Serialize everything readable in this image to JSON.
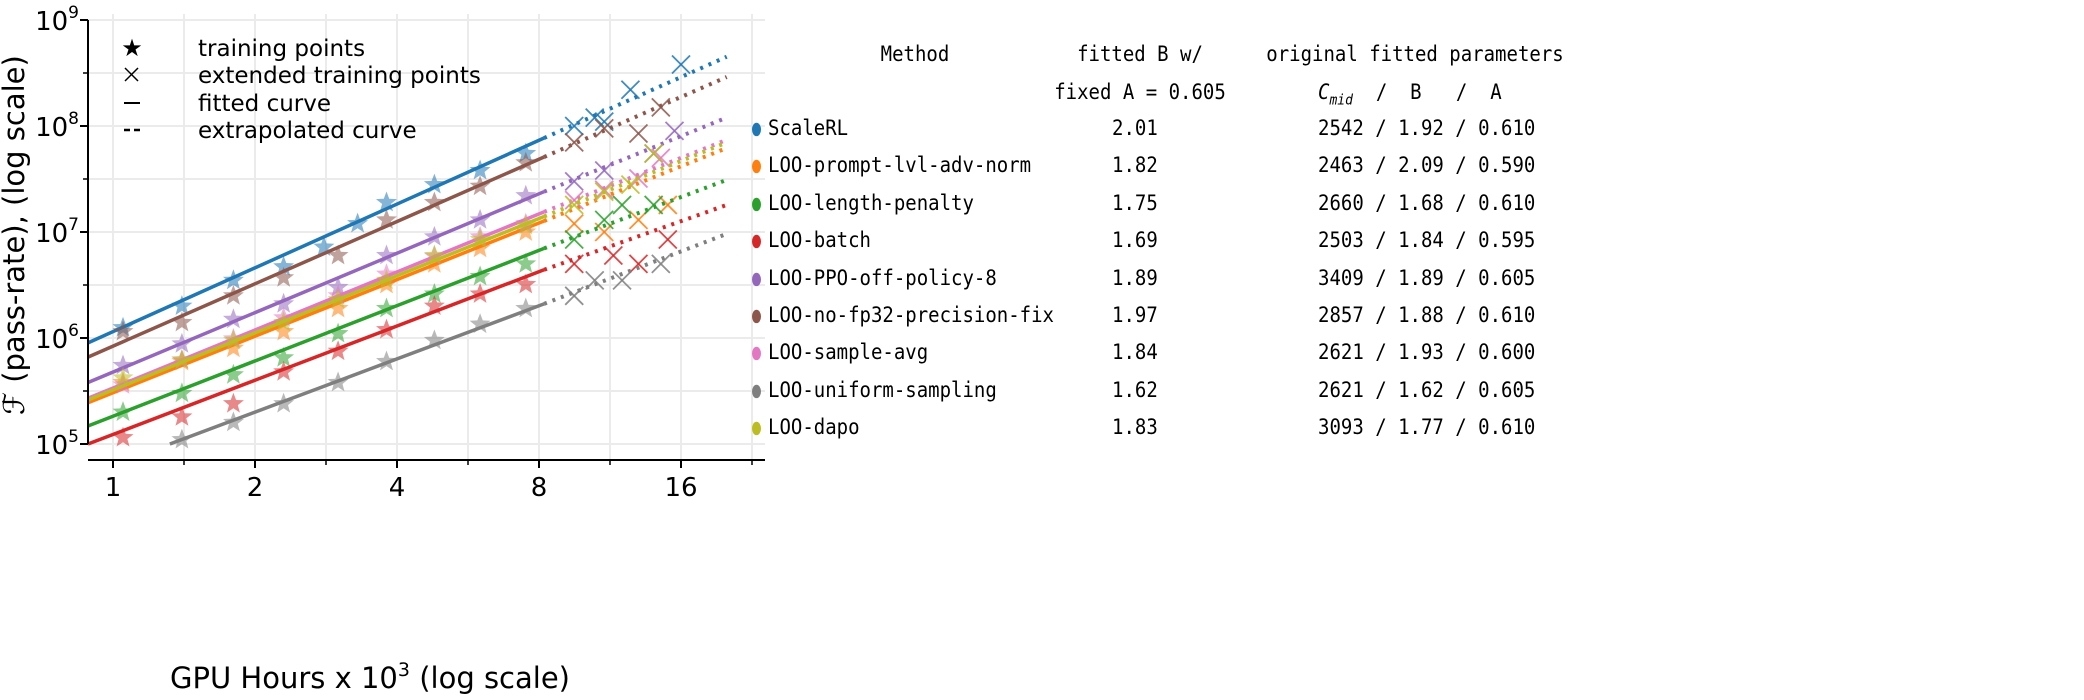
{
  "chart_data": {
    "type": "scatter",
    "xlabel": "GPU Hours x 10",
    "xlabel_sup": "3",
    "xlabel_suffix": " (log scale)",
    "ylabel": "ℱ (pass-rate), (log scale)",
    "x_scale": "log2",
    "y_scale": "log10",
    "xlim": [
      0.885,
      24
    ],
    "ylim": [
      70000,
      1000000000
    ],
    "x_ticks": [
      1,
      2,
      4,
      8,
      16
    ],
    "y_ticks": [
      {
        "base": "10",
        "exp": "5",
        "value": 100000
      },
      {
        "base": "10",
        "exp": "6",
        "value": 1000000
      },
      {
        "base": "10",
        "exp": "7",
        "value": 10000000
      },
      {
        "base": "10",
        "exp": "8",
        "value": 100000000
      },
      {
        "base": "10",
        "exp": "9",
        "value": 1000000000
      }
    ],
    "grid": true,
    "legend": {
      "placement": "top-left",
      "entries": [
        {
          "marker": "star",
          "label": "training points"
        },
        {
          "marker": "x",
          "label": "extended training points"
        },
        {
          "marker": "solid-line",
          "label": "fitted curve"
        },
        {
          "marker": "dashed-line",
          "label": "extrapolated curve"
        }
      ]
    },
    "series": [
      {
        "name": "ScaleRL",
        "color": "#1f77b4",
        "fit": [
          [
            0.885,
            900000
          ],
          [
            8.2,
            77000000
          ]
        ],
        "extrapolated_end": [
          20,
          450000000
        ],
        "training": [
          [
            1.05,
            1250000
          ],
          [
            1.4,
            2000000
          ],
          [
            1.8,
            3500000
          ],
          [
            2.3,
            4700000
          ],
          [
            2.8,
            7200000
          ],
          [
            3.3,
            12000000.0
          ],
          [
            3.8,
            19000000.0
          ],
          [
            4.8,
            28000000.0
          ],
          [
            6.0,
            38000000.0
          ],
          [
            7.5,
            55000000.0
          ]
        ],
        "extended": [
          [
            9.5,
            100000000.0
          ],
          [
            10.5,
            120000000.0
          ],
          [
            11,
            110000000.0
          ],
          [
            12.5,
            220000000.0
          ],
          [
            16,
            380000000.0
          ]
        ]
      },
      {
        "name": "LOO-prompt-lvl-adv-norm",
        "color": "#ff7f0e",
        "fit": [
          [
            0.885,
            245000
          ],
          [
            8.2,
            12700000
          ]
        ],
        "extrapolated_end": [
          20,
          62000000
        ],
        "training": [
          [
            1.05,
            380000
          ],
          [
            1.4,
            600000
          ],
          [
            1.8,
            800000
          ],
          [
            2.3,
            1150000
          ],
          [
            3.0,
            1900000
          ],
          [
            3.8,
            3200000
          ],
          [
            4.8,
            5000000
          ],
          [
            6.0,
            7000000
          ],
          [
            7.5,
            10000000.0
          ]
        ],
        "extended": [
          [
            9.5,
            12000000.0
          ],
          [
            11,
            10000000.0
          ],
          [
            13,
            13000000.0
          ],
          [
            15,
            18000000.0
          ]
        ]
      },
      {
        "name": "LOO-length-penalty",
        "color": "#2ca02c",
        "fit": [
          [
            0.885,
            148000
          ],
          [
            8.2,
            7000000
          ]
        ],
        "extrapolated_end": [
          20,
          31000000
        ],
        "training": [
          [
            1.05,
            200000
          ],
          [
            1.4,
            300000
          ],
          [
            1.8,
            450000
          ],
          [
            2.3,
            650000
          ],
          [
            3.0,
            1100000
          ],
          [
            3.8,
            1900000
          ],
          [
            4.8,
            2600000
          ],
          [
            6.0,
            3800000
          ],
          [
            7.5,
            5000000
          ]
        ],
        "extended": [
          [
            9.5,
            8500000
          ],
          [
            11,
            13000000.0
          ],
          [
            12,
            18000000.0
          ],
          [
            14,
            18000000.0
          ]
        ]
      },
      {
        "name": "LOO-batch",
        "color": "#d62728",
        "fit": [
          [
            0.885,
            100000
          ],
          [
            8.2,
            4400000
          ]
        ],
        "extrapolated_end": [
          20,
          18000000
        ],
        "training": [
          [
            1.05,
            115000
          ],
          [
            1.4,
            180000
          ],
          [
            1.8,
            240000
          ],
          [
            2.3,
            480000
          ],
          [
            3.0,
            750000
          ],
          [
            3.8,
            1200000
          ],
          [
            4.8,
            2000000
          ],
          [
            6.0,
            2600000
          ],
          [
            7.5,
            3200000
          ]
        ],
        "extended": [
          [
            9.5,
            5000000
          ],
          [
            11.5,
            6000000
          ],
          [
            13,
            5000000
          ],
          [
            15,
            8500000
          ]
        ]
      },
      {
        "name": "LOO-PPO-off-policy-8",
        "color": "#9467bd",
        "fit": [
          [
            0.885,
            380000
          ],
          [
            8.2,
            24000000
          ]
        ],
        "extrapolated_end": [
          20,
          120000000
        ],
        "training": [
          [
            1.05,
            550000
          ],
          [
            1.4,
            880000
          ],
          [
            1.8,
            1500000
          ],
          [
            2.3,
            2100000
          ],
          [
            3.0,
            3000000
          ],
          [
            3.8,
            6000000
          ],
          [
            4.8,
            9000000
          ],
          [
            6.0,
            13000000.0
          ],
          [
            7.5,
            22000000.0
          ]
        ],
        "extended": [
          [
            9.5,
            30000000.0
          ],
          [
            11,
            38000000.0
          ],
          [
            14,
            55000000.0
          ],
          [
            15.5,
            90000000.0
          ]
        ]
      },
      {
        "name": "LOO-no-fp32-precision-fix",
        "color": "#8c564b",
        "fit": [
          [
            0.885,
            660000
          ],
          [
            8.2,
            51000000
          ]
        ],
        "extrapolated_end": [
          20,
          290000000
        ],
        "training": [
          [
            1.05,
            1150000
          ],
          [
            1.4,
            1400000
          ],
          [
            1.8,
            2500000
          ],
          [
            2.3,
            3700000
          ],
          [
            3.0,
            6000000
          ],
          [
            3.8,
            13000000.0
          ],
          [
            4.8,
            19000000.0
          ],
          [
            6.0,
            27000000.0
          ],
          [
            7.5,
            45000000.0
          ]
        ],
        "extended": [
          [
            9.5,
            70000000.0
          ],
          [
            11,
            95000000.0
          ],
          [
            13,
            85000000.0
          ],
          [
            14.5,
            150000000.0
          ]
        ]
      },
      {
        "name": "LOO-sample-avg",
        "color": "#e377c2",
        "fit": [
          [
            0.885,
            270000
          ],
          [
            8.2,
            15500000
          ]
        ],
        "extrapolated_end": [
          20,
          74000000
        ],
        "training": [
          [
            1.05,
            360000
          ],
          [
            1.4,
            620000
          ],
          [
            1.8,
            980000
          ],
          [
            2.3,
            1550000
          ],
          [
            3.0,
            2500000
          ],
          [
            3.8,
            4000000
          ],
          [
            4.8,
            5900000
          ],
          [
            6.0,
            9000000
          ],
          [
            7.5,
            12000000.0
          ]
        ],
        "extended": [
          [
            9.5,
            20000000.0
          ],
          [
            11,
            25000000.0
          ],
          [
            13,
            32000000.0
          ],
          [
            14.5,
            50000000.0
          ]
        ]
      },
      {
        "name": "LOO-uniform-sampling",
        "color": "#7f7f7f",
        "fit": [
          [
            1.32,
            100000
          ],
          [
            8.2,
            2100000
          ]
        ],
        "extrapolated_end": [
          20,
          9600000
        ],
        "training": [
          [
            1.4,
            110000
          ],
          [
            1.8,
            160000
          ],
          [
            2.3,
            240000
          ],
          [
            3.0,
            380000
          ],
          [
            3.8,
            600000
          ],
          [
            4.8,
            950000
          ],
          [
            6.0,
            1350000
          ],
          [
            7.5,
            1900000
          ]
        ],
        "extended": [
          [
            9.5,
            2500000
          ],
          [
            10.5,
            3500000
          ],
          [
            12,
            3500000
          ],
          [
            14.5,
            5000000
          ]
        ]
      },
      {
        "name": "LOO-dapo",
        "color": "#bcbd22",
        "fit": [
          [
            0.885,
            260000
          ],
          [
            8.2,
            14000000
          ]
        ],
        "extrapolated_end": [
          20,
          70000000
        ],
        "training": [
          [
            1.05,
            420000
          ],
          [
            1.4,
            620000
          ],
          [
            1.8,
            950000
          ],
          [
            2.3,
            1400000
          ],
          [
            3.0,
            2300000
          ],
          [
            3.8,
            3500000
          ],
          [
            4.8,
            6000000
          ],
          [
            6.0,
            8500000
          ],
          [
            7.5,
            11500000.0
          ]
        ],
        "extended": [
          [
            9.5,
            18000000.0
          ],
          [
            11,
            24000000.0
          ],
          [
            12.5,
            28000000.0
          ],
          [
            14,
            55000000.0
          ]
        ]
      }
    ]
  },
  "table": {
    "headers": {
      "method": "Method",
      "fitted_line1": "fitted B w/",
      "fitted_line2": "fixed A = 0.605",
      "original_line1": "original fitted parameters",
      "original_c": "C",
      "original_c_sub": "mid",
      "original_rest": "  /  B   /  A"
    },
    "rows": [
      {
        "method": "ScaleRL",
        "fitted_b": "2.01",
        "original": "2542 / 1.92 / 0.610",
        "color": "#1f77b4"
      },
      {
        "method": "LOO-prompt-lvl-adv-norm",
        "fitted_b": "1.82",
        "original": "2463 / 2.09 / 0.590",
        "color": "#ff7f0e"
      },
      {
        "method": "LOO-length-penalty",
        "fitted_b": "1.75",
        "original": "2660 / 1.68 / 0.610",
        "color": "#2ca02c"
      },
      {
        "method": "LOO-batch",
        "fitted_b": "1.69",
        "original": "2503 / 1.84 / 0.595",
        "color": "#d62728"
      },
      {
        "method": "LOO-PPO-off-policy-8",
        "fitted_b": "1.89",
        "original": "3409 / 1.89 / 0.605",
        "color": "#9467bd"
      },
      {
        "method": "LOO-no-fp32-precision-fix",
        "fitted_b": "1.97",
        "original": "2857 / 1.88 / 0.610",
        "color": "#8c564b"
      },
      {
        "method": "LOO-sample-avg",
        "fitted_b": "1.84",
        "original": "2621 / 1.93 / 0.600",
        "color": "#e377c2"
      },
      {
        "method": "LOO-uniform-sampling",
        "fitted_b": "1.62",
        "original": "2621 / 1.62 / 0.605",
        "color": "#7f7f7f"
      },
      {
        "method": "LOO-dapo",
        "fitted_b": "1.83",
        "original": "3093 / 1.77 / 0.610",
        "color": "#bcbd22"
      }
    ]
  }
}
